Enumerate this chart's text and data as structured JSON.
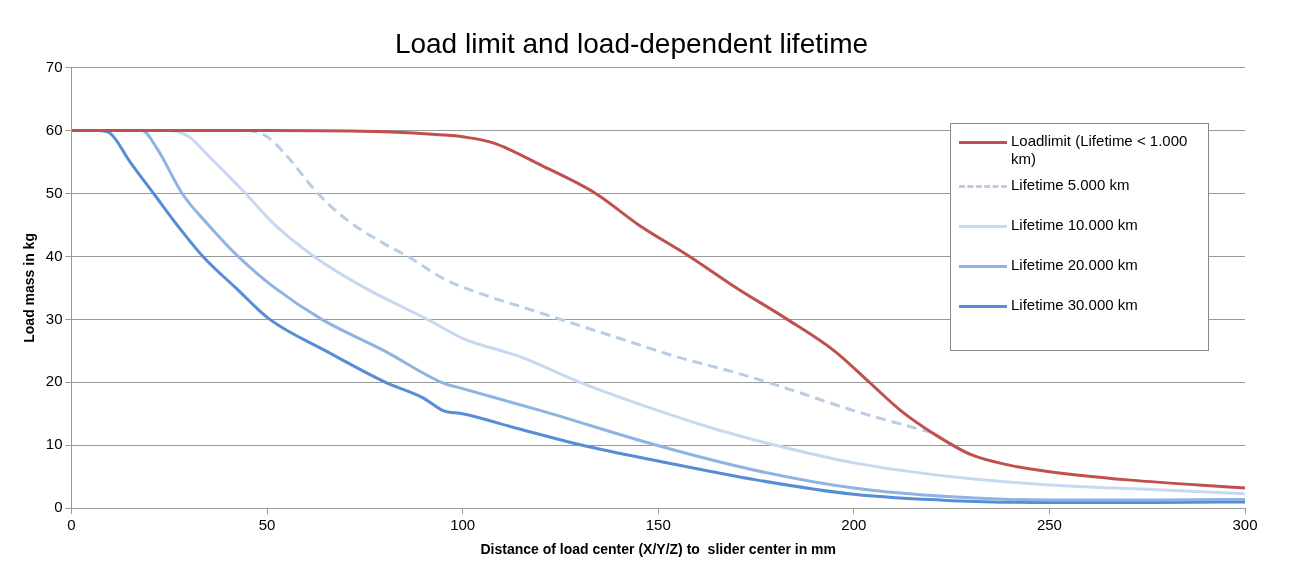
{
  "chart_data": {
    "type": "line",
    "title": "Load limit and load-dependent lifetime",
    "xlabel": "Distance of load center (X/Y/Z) to  slider center in mm",
    "ylabel": "Load mass in kg",
    "xlim": [
      0,
      300
    ],
    "xticks": [
      0,
      50,
      100,
      150,
      200,
      250,
      300
    ],
    "ylim": [
      0,
      70
    ],
    "yticks": [
      0,
      10,
      20,
      30,
      40,
      50,
      60,
      70
    ],
    "grid": "y",
    "legend": "top right",
    "marker": "none",
    "series": [
      {
        "name": "Loadlimit (Lifetime < 1.000 km)",
        "color": "#c0504d",
        "line_style": "solid",
        "x": [
          0,
          20,
          50,
          80,
          95,
          100,
          108,
          120,
          134,
          145,
          158,
          170,
          183,
          195,
          204,
          212,
          220,
          230,
          240,
          250,
          270,
          300
        ],
        "values": [
          60,
          60,
          60,
          59.8,
          59.3,
          59,
          58,
          54.5,
          50,
          45,
          40,
          35,
          30,
          25,
          20,
          15.5,
          12,
          8.5,
          6.8,
          5.8,
          4.5,
          3.2
        ]
      },
      {
        "name": "Lifetime 5.000 km",
        "color": "#b9cde5",
        "line_style": "dashed",
        "x": [
          0,
          20,
          45,
          50,
          55,
          63,
          70,
          80,
          86,
          95,
          105,
          115,
          125,
          140,
          155,
          170,
          183,
          200,
          220
        ],
        "values": [
          60,
          60,
          60,
          59,
          56,
          50,
          46,
          42,
          40,
          36.5,
          34,
          32,
          30,
          27,
          24,
          21.5,
          19,
          15.5,
          12
        ]
      },
      {
        "name": "Lifetime 10.000 km",
        "color": "#c6d9f1",
        "line_style": "solid",
        "x": [
          0,
          25,
          30,
          35,
          44.5,
          52,
          62,
          75,
          91,
          100,
          115,
          130,
          150,
          165,
          180,
          200,
          225,
          250,
          275,
          300
        ],
        "values": [
          60,
          60,
          59,
          56,
          50,
          45,
          40,
          35,
          30,
          27,
          24,
          20,
          15.5,
          12.5,
          10,
          7.2,
          5,
          3.7,
          3,
          2.3
        ]
      },
      {
        "name": "Lifetime 20.000 km",
        "color": "#8eb4e3",
        "line_style": "solid",
        "x": [
          0,
          15,
          18,
          22,
          28.3,
          35,
          42.6,
          52,
          64,
          80,
          94.6,
          100,
          120,
          149.6,
          175,
          200,
          225,
          250,
          275,
          300
        ],
        "values": [
          60,
          60,
          60,
          57,
          50,
          45,
          40,
          35,
          30,
          25,
          20,
          19,
          15.5,
          10,
          6,
          3.2,
          1.8,
          1.3,
          1.3,
          1.4
        ]
      },
      {
        "name": "Lifetime 30.000 km",
        "color": "#558ed5",
        "line_style": "solid",
        "x": [
          0,
          7,
          10,
          15,
          21,
          27,
          33.6,
          42,
          50.7,
          65,
          80.3,
          90,
          95,
          100,
          115,
          130.6,
          150,
          175,
          200,
          225,
          250,
          275,
          300
        ],
        "values": [
          60,
          60,
          59.5,
          55,
          50,
          45,
          40,
          35,
          30,
          25,
          20,
          17.5,
          15.5,
          15,
          12.5,
          10,
          7.5,
          4.5,
          2.2,
          1.2,
          0.9,
          0.9,
          1.0
        ]
      }
    ]
  }
}
